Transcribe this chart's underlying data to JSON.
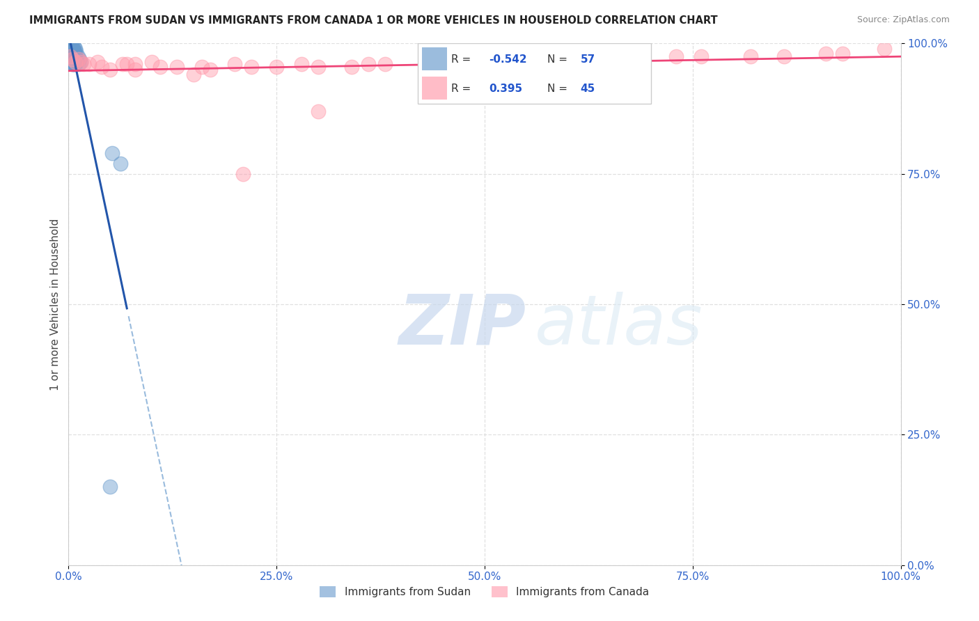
{
  "title": "IMMIGRANTS FROM SUDAN VS IMMIGRANTS FROM CANADA 1 OR MORE VEHICLES IN HOUSEHOLD CORRELATION CHART",
  "source": "Source: ZipAtlas.com",
  "ylabel": "1 or more Vehicles in Household",
  "xlim": [
    0,
    1.0
  ],
  "ylim": [
    0,
    1.0
  ],
  "xticks": [
    0.0,
    0.25,
    0.5,
    0.75,
    1.0
  ],
  "yticks": [
    0.0,
    0.25,
    0.5,
    0.75,
    1.0
  ],
  "xtick_labels": [
    "0.0%",
    "25.0%",
    "50.0%",
    "75.0%",
    "100.0%"
  ],
  "ytick_labels": [
    "0.0%",
    "25.0%",
    "50.0%",
    "75.0%",
    "100.0%"
  ],
  "sudan_color": "#6699cc",
  "canada_color": "#ff99aa",
  "sudan_R_label": "R = ",
  "sudan_R_val": "-0.542",
  "sudan_N_label": "N = ",
  "sudan_N_val": "57",
  "canada_R_label": "R =  ",
  "canada_R_val": "0.395",
  "canada_N_label": "N = ",
  "canada_N_val": "45",
  "sudan_label": "Immigrants from Sudan",
  "canada_label": "Immigrants from Canada",
  "watermark_zip": "ZIP",
  "watermark_atlas": "atlas",
  "background_color": "#ffffff",
  "grid_color": "#dddddd",
  "sudan_x": [
    0.002,
    0.003,
    0.003,
    0.003,
    0.003,
    0.004,
    0.004,
    0.004,
    0.004,
    0.004,
    0.005,
    0.005,
    0.005,
    0.005,
    0.005,
    0.006,
    0.006,
    0.006,
    0.006,
    0.007,
    0.007,
    0.007,
    0.007,
    0.008,
    0.008,
    0.008,
    0.009,
    0.009,
    0.01,
    0.011,
    0.012,
    0.013,
    0.015,
    0.003,
    0.004,
    0.005,
    0.006,
    0.007,
    0.008,
    0.004,
    0.005,
    0.006,
    0.003,
    0.005,
    0.004,
    0.006,
    0.007,
    0.005,
    0.052,
    0.062,
    0.005,
    0.004,
    0.003,
    0.007,
    0.006,
    0.004,
    0.05
  ],
  "sudan_y": [
    0.985,
    0.975,
    0.99,
    0.97,
    0.995,
    0.975,
    0.965,
    0.985,
    0.995,
    0.97,
    0.975,
    0.99,
    0.96,
    0.98,
    0.995,
    0.97,
    0.985,
    0.96,
    0.995,
    0.975,
    0.965,
    0.985,
    0.96,
    0.975,
    0.99,
    0.96,
    0.97,
    0.985,
    0.965,
    0.975,
    0.96,
    0.97,
    0.965,
    0.98,
    0.99,
    0.97,
    0.975,
    0.985,
    0.965,
    0.99,
    0.975,
    0.965,
    0.995,
    0.96,
    0.985,
    0.975,
    0.965,
    0.98,
    0.79,
    0.77,
    0.975,
    0.985,
    0.99,
    0.965,
    0.97,
    0.975,
    0.15
  ],
  "canada_x": [
    0.002,
    0.005,
    0.008,
    0.012,
    0.018,
    0.025,
    0.035,
    0.05,
    0.065,
    0.08,
    0.1,
    0.13,
    0.16,
    0.2,
    0.25,
    0.3,
    0.36,
    0.43,
    0.5,
    0.58,
    0.65,
    0.73,
    0.82,
    0.91,
    0.98,
    0.015,
    0.04,
    0.07,
    0.11,
    0.17,
    0.22,
    0.28,
    0.34,
    0.38,
    0.44,
    0.54,
    0.6,
    0.68,
    0.76,
    0.86,
    0.93,
    0.3,
    0.21,
    0.15,
    0.08
  ],
  "canada_y": [
    0.975,
    0.97,
    0.965,
    0.97,
    0.96,
    0.96,
    0.965,
    0.95,
    0.96,
    0.96,
    0.965,
    0.955,
    0.955,
    0.96,
    0.955,
    0.955,
    0.96,
    0.96,
    0.965,
    0.97,
    0.97,
    0.975,
    0.975,
    0.98,
    0.99,
    0.965,
    0.955,
    0.96,
    0.955,
    0.95,
    0.955,
    0.96,
    0.955,
    0.96,
    0.965,
    0.965,
    0.96,
    0.97,
    0.975,
    0.975,
    0.98,
    0.87,
    0.75,
    0.94,
    0.95
  ]
}
